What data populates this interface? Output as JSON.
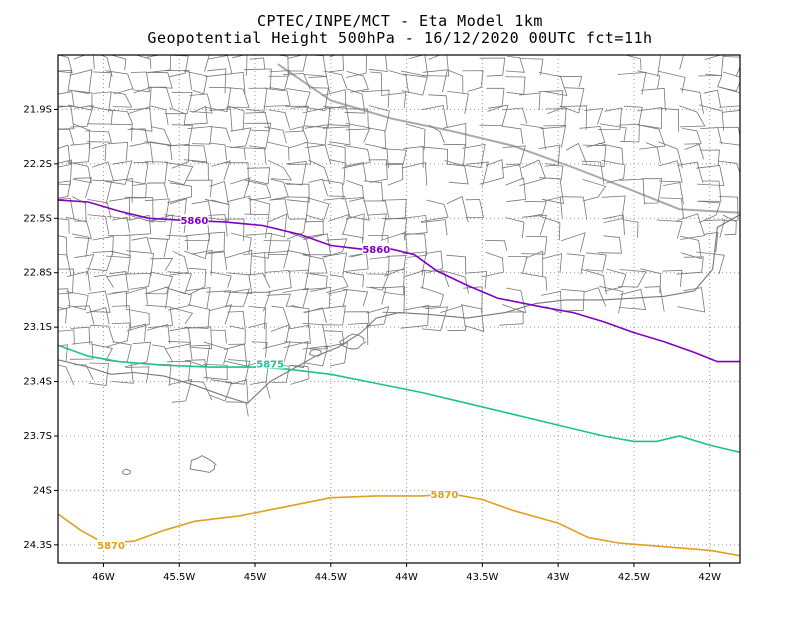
{
  "title_line1": "CPTEC/INPE/MCT -  Eta Model 1km",
  "title_line2": "Geopotential Height 500hPa - 16/12/2020 00UTC fct=11h",
  "map": {
    "lon_range": [
      -46.3,
      -41.8
    ],
    "lat_range": [
      -24.4,
      -21.6
    ],
    "lat_ticks": [
      "21.9S",
      "22.2S",
      "22.5S",
      "22.8S",
      "23.1S",
      "23.4S",
      "23.7S",
      "24S",
      "24.3S"
    ],
    "lat_tick_values": [
      -21.9,
      -22.2,
      -22.5,
      -22.8,
      -23.1,
      -23.4,
      -23.7,
      -24.0,
      -24.3
    ],
    "lon_ticks": [
      "46W",
      "45.5W",
      "45W",
      "44.5W",
      "44W",
      "43.5W",
      "43W",
      "42.5W",
      "42W"
    ],
    "lon_tick_values": [
      -46,
      -45.5,
      -45,
      -44.5,
      -44,
      -43.5,
      -43,
      -42.5,
      -42
    ],
    "grid": "dotted",
    "colors": {
      "boundary": "#777777",
      "state_border": "#aaaaaa",
      "frame": "#000000"
    }
  },
  "contours": [
    {
      "label": "5860",
      "color": "#8000c0",
      "label_positions": [
        [
          -45.4,
          -22.51
        ],
        [
          -44.2,
          -22.67
        ]
      ],
      "points": [
        [
          -46.3,
          -22.4
        ],
        [
          -46.1,
          -22.41
        ],
        [
          -45.9,
          -22.46
        ],
        [
          -45.7,
          -22.5
        ],
        [
          -45.5,
          -22.51
        ],
        [
          -45.2,
          -22.52
        ],
        [
          -44.95,
          -22.54
        ],
        [
          -44.7,
          -22.59
        ],
        [
          -44.5,
          -22.65
        ],
        [
          -44.3,
          -22.67
        ],
        [
          -44.1,
          -22.67
        ],
        [
          -43.95,
          -22.7
        ],
        [
          -43.8,
          -22.79
        ],
        [
          -43.6,
          -22.87
        ],
        [
          -43.4,
          -22.94
        ],
        [
          -43.1,
          -22.99
        ],
        [
          -42.9,
          -23.02
        ],
        [
          -42.7,
          -23.07
        ],
        [
          -42.5,
          -23.13
        ],
        [
          -42.3,
          -23.18
        ],
        [
          -42.1,
          -23.24
        ],
        [
          -41.95,
          -23.29
        ],
        [
          -41.8,
          -23.29
        ]
      ]
    },
    {
      "label": "5875",
      "color": "#20c090",
      "label_positions": [
        [
          -44.9,
          -23.3
        ]
      ],
      "points": [
        [
          -46.3,
          -23.2
        ],
        [
          -46.1,
          -23.26
        ],
        [
          -45.9,
          -23.29
        ],
        [
          -45.6,
          -23.31
        ],
        [
          -45.3,
          -23.32
        ],
        [
          -45.0,
          -23.32
        ],
        [
          -44.8,
          -23.33
        ],
        [
          -44.5,
          -23.36
        ],
        [
          -44.2,
          -23.41
        ],
        [
          -43.9,
          -23.46
        ],
        [
          -43.6,
          -23.52
        ],
        [
          -43.3,
          -23.58
        ],
        [
          -43.0,
          -23.64
        ],
        [
          -42.7,
          -23.7
        ],
        [
          -42.5,
          -23.73
        ],
        [
          -42.35,
          -23.73
        ],
        [
          -42.2,
          -23.7
        ],
        [
          -42.0,
          -23.75
        ],
        [
          -41.8,
          -23.79
        ]
      ]
    },
    {
      "label": "5870",
      "color": "#e0a020",
      "label_positions": [
        [
          -43.75,
          -24.02
        ],
        [
          -45.95,
          -24.3
        ]
      ],
      "points": [
        [
          -46.3,
          -24.13
        ],
        [
          -46.15,
          -24.22
        ],
        [
          -46.0,
          -24.29
        ],
        [
          -45.8,
          -24.28
        ],
        [
          -45.6,
          -24.22
        ],
        [
          -45.4,
          -24.17
        ],
        [
          -45.1,
          -24.14
        ],
        [
          -44.8,
          -24.09
        ],
        [
          -44.5,
          -24.04
        ],
        [
          -44.2,
          -24.03
        ],
        [
          -43.9,
          -24.03
        ],
        [
          -43.7,
          -24.02
        ],
        [
          -43.5,
          -24.05
        ],
        [
          -43.3,
          -24.11
        ],
        [
          -43.0,
          -24.18
        ],
        [
          -42.8,
          -24.26
        ],
        [
          -42.6,
          -24.29
        ],
        [
          -42.3,
          -24.31
        ],
        [
          -42.0,
          -24.33
        ],
        [
          -41.8,
          -24.36
        ]
      ]
    }
  ],
  "boundaries": {
    "coast": [
      [
        -46.3,
        -23.28
      ],
      [
        -46.1,
        -23.32
      ],
      [
        -45.95,
        -23.36
      ],
      [
        -45.8,
        -23.35
      ],
      [
        -45.6,
        -23.37
      ],
      [
        -45.4,
        -23.42
      ],
      [
        -45.2,
        -23.48
      ],
      [
        -45.05,
        -23.52
      ],
      [
        -44.9,
        -23.4
      ],
      [
        -44.75,
        -23.33
      ],
      [
        -44.6,
        -23.26
      ],
      [
        -44.45,
        -23.21
      ],
      [
        -44.3,
        -23.13
      ],
      [
        -44.2,
        -23.05
      ],
      [
        -44.05,
        -23.02
      ],
      [
        -43.85,
        -23.03
      ],
      [
        -43.6,
        -23.05
      ],
      [
        -43.35,
        -23.02
      ],
      [
        -43.15,
        -22.97
      ],
      [
        -42.95,
        -22.95
      ],
      [
        -42.7,
        -22.95
      ],
      [
        -42.5,
        -22.94
      ],
      [
        -42.3,
        -22.93
      ],
      [
        -42.1,
        -22.9
      ],
      [
        -41.98,
        -22.78
      ],
      [
        -41.95,
        -22.55
      ],
      [
        -41.8,
        -22.48
      ]
    ],
    "state_border": [
      [
        -44.85,
        -21.65
      ],
      [
        -44.5,
        -21.85
      ],
      [
        -44.1,
        -21.95
      ],
      [
        -43.7,
        -22.02
      ],
      [
        -43.3,
        -22.1
      ],
      [
        -42.9,
        -22.22
      ],
      [
        -42.5,
        -22.35
      ],
      [
        -42.2,
        -22.45
      ],
      [
        -41.8,
        -22.47
      ]
    ],
    "dense_region": [
      -46.3,
      -22.2,
      -44.2,
      -23.9
    ]
  }
}
